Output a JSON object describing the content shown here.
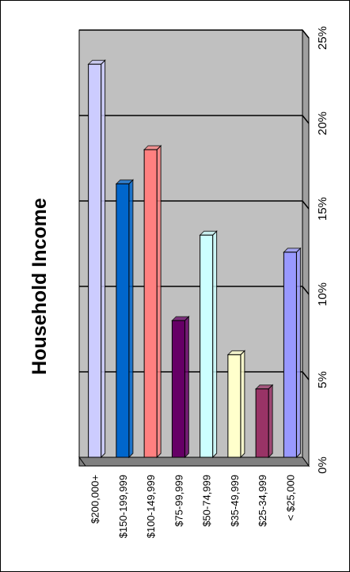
{
  "chart_data": {
    "type": "bar",
    "orientation": "rotated-90-cw",
    "title": "Household Income",
    "categories": [
      "$200,000+",
      "$150-199,999",
      "$100-149,999",
      "$75-99,999",
      "$50-74,999",
      "$35-49,999",
      "$25-34,999",
      "< $25,000"
    ],
    "values": [
      23,
      16,
      18,
      8,
      13,
      6,
      4,
      12
    ],
    "colors": [
      "#ccccff",
      "#0066cc",
      "#ff8080",
      "#660066",
      "#ccffff",
      "#ffffcc",
      "#993366",
      "#9999ff"
    ],
    "ylim": [
      0,
      25
    ],
    "yticks": [
      "0%",
      "5%",
      "10%",
      "15%",
      "20%",
      "25%"
    ],
    "grid": true,
    "legend": "none",
    "style": "3d"
  }
}
